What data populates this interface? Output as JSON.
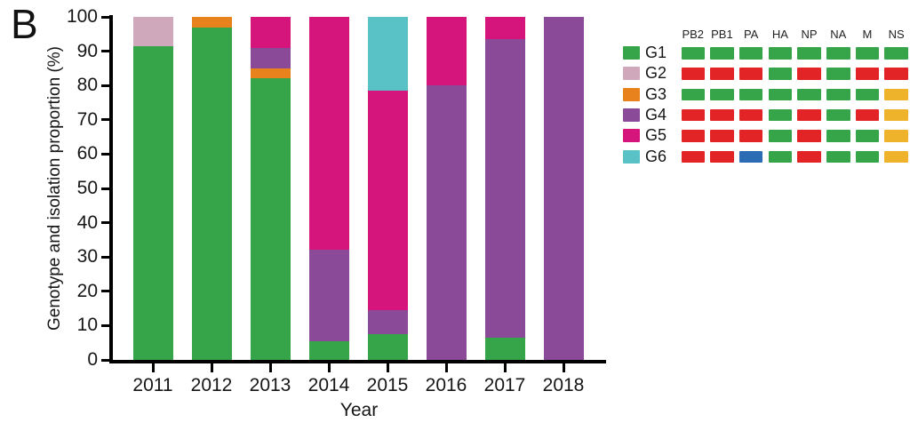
{
  "panel_label": "B",
  "chart_data": {
    "type": "stacked_bar",
    "title": "",
    "xlabel": "Year",
    "ylabel": "Genotype and isolation proportion (%)",
    "ylim": [
      0,
      100
    ],
    "yticks": [
      0,
      10,
      20,
      30,
      40,
      50,
      60,
      70,
      80,
      90,
      100
    ],
    "grid": false,
    "legend_position": "right",
    "categories": [
      "2011",
      "2012",
      "2013",
      "2014",
      "2015",
      "2016",
      "2017",
      "2018"
    ],
    "series": [
      {
        "name": "G1",
        "color": "#36a54a",
        "values": [
          91.5,
          97,
          82,
          5.5,
          7.5,
          0,
          6.5,
          0
        ]
      },
      {
        "name": "G2",
        "color": "#cfa9bb",
        "values": [
          8.5,
          0,
          0,
          0,
          0,
          0,
          0,
          0
        ]
      },
      {
        "name": "G3",
        "color": "#e8821d",
        "values": [
          0,
          3,
          3,
          0,
          0,
          0,
          0,
          0
        ]
      },
      {
        "name": "G4",
        "color": "#8b4a98",
        "values": [
          0,
          0,
          6,
          26.5,
          7,
          80,
          87,
          100
        ]
      },
      {
        "name": "G5",
        "color": "#d5157b",
        "values": [
          0,
          0,
          9,
          68,
          64,
          20,
          6.5,
          0
        ]
      },
      {
        "name": "G6",
        "color": "#58c2c7",
        "values": [
          0,
          0,
          0,
          0,
          21.5,
          0,
          0,
          0
        ]
      }
    ]
  },
  "legend": {
    "gene_headers": [
      "PB2",
      "PB1",
      "PA",
      "HA",
      "NP",
      "NA",
      "M",
      "NS"
    ],
    "gene_colors": {
      "green": "#36a54a",
      "red": "#e22426",
      "yellow": "#eeb22b",
      "blue": "#2b6cb4"
    },
    "genotypes": [
      {
        "label": "G1",
        "swatch": "#36a54a",
        "genes": [
          "green",
          "green",
          "green",
          "green",
          "green",
          "green",
          "green",
          "green"
        ]
      },
      {
        "label": "G2",
        "swatch": "#cfa9bb",
        "genes": [
          "red",
          "red",
          "red",
          "green",
          "red",
          "green",
          "red",
          "red"
        ]
      },
      {
        "label": "G3",
        "swatch": "#e8821d",
        "genes": [
          "green",
          "green",
          "green",
          "green",
          "green",
          "green",
          "green",
          "yellow"
        ]
      },
      {
        "label": "G4",
        "swatch": "#8b4a98",
        "genes": [
          "red",
          "red",
          "red",
          "green",
          "red",
          "green",
          "red",
          "yellow"
        ]
      },
      {
        "label": "G5",
        "swatch": "#d5157b",
        "genes": [
          "red",
          "red",
          "red",
          "green",
          "red",
          "green",
          "green",
          "yellow"
        ]
      },
      {
        "label": "G6",
        "swatch": "#58c2c7",
        "genes": [
          "red",
          "red",
          "blue",
          "green",
          "red",
          "green",
          "green",
          "yellow"
        ]
      }
    ]
  }
}
